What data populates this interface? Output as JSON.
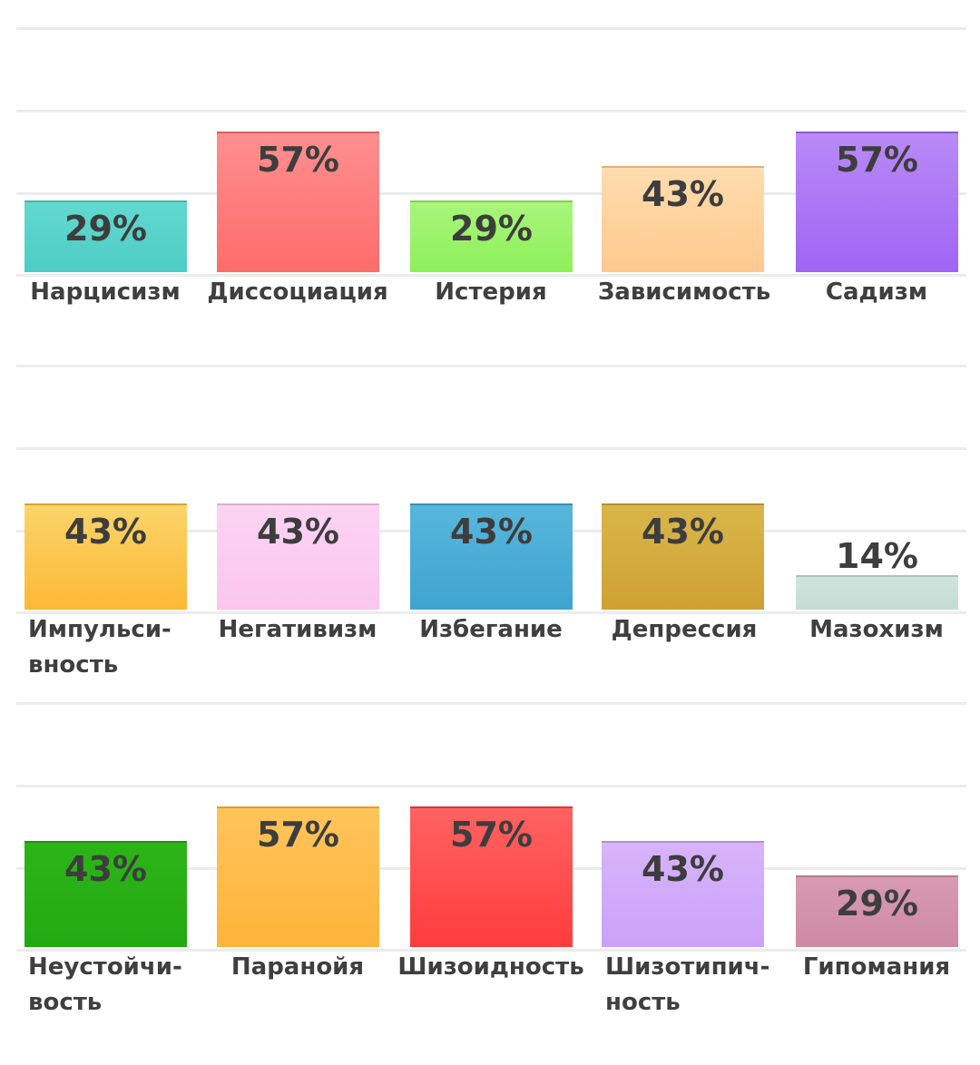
{
  "chart_data": [
    {
      "type": "bar",
      "ylim": [
        0,
        100
      ],
      "grid": true,
      "categories": [
        "Нарцисизм",
        "Диссоциация",
        "Истерия",
        "Зависимость",
        "Садизм"
      ],
      "values": [
        29,
        57,
        29,
        43,
        57
      ],
      "value_labels": [
        "29%",
        "57%",
        "29%",
        "43%",
        "57%"
      ],
      "colors": [
        [
          "#62d8d0",
          "#4ecdc4"
        ],
        [
          "#ff8f8f",
          "#ff6b6b"
        ],
        [
          "#a8f57c",
          "#8ef05a"
        ],
        [
          "#ffdcae",
          "#ffc98e"
        ],
        [
          "#b98af8",
          "#a064f3"
        ]
      ]
    },
    {
      "type": "bar",
      "ylim": [
        0,
        100
      ],
      "grid": true,
      "categories": [
        "Импульси-\nвность",
        "Негативизм",
        "Избегание",
        "Депрессия",
        "Мазохизм"
      ],
      "values": [
        43,
        43,
        43,
        43,
        14
      ],
      "value_labels": [
        "43%",
        "43%",
        "43%",
        "43%",
        "14%"
      ],
      "colors": [
        [
          "#fbd46a",
          "#fdb935"
        ],
        [
          "#fcd3f3",
          "#fbc6ee"
        ],
        [
          "#58b6dc",
          "#3ea4d0"
        ],
        [
          "#d9b64a",
          "#cfa132"
        ],
        [
          "#cfe4dc",
          "#c4ddd4"
        ]
      ]
    },
    {
      "type": "bar",
      "ylim": [
        0,
        100
      ],
      "grid": true,
      "categories": [
        "Неустойчи-\nвость",
        "Паранойя",
        "Шизоидность",
        "Шизотипич-\nность",
        "Гипомания"
      ],
      "values": [
        43,
        57,
        57,
        43,
        29
      ],
      "value_labels": [
        "43%",
        "57%",
        "57%",
        "43%",
        "29%"
      ],
      "colors": [
        [
          "#2db418",
          "#22aa12"
        ],
        [
          "#ffc45a",
          "#ffb43a"
        ],
        [
          "#ff6262",
          "#ff3c3c"
        ],
        [
          "#d8b4fb",
          "#caa2f8"
        ],
        [
          "#d89ab0",
          "#cd8ba3"
        ]
      ]
    }
  ]
}
